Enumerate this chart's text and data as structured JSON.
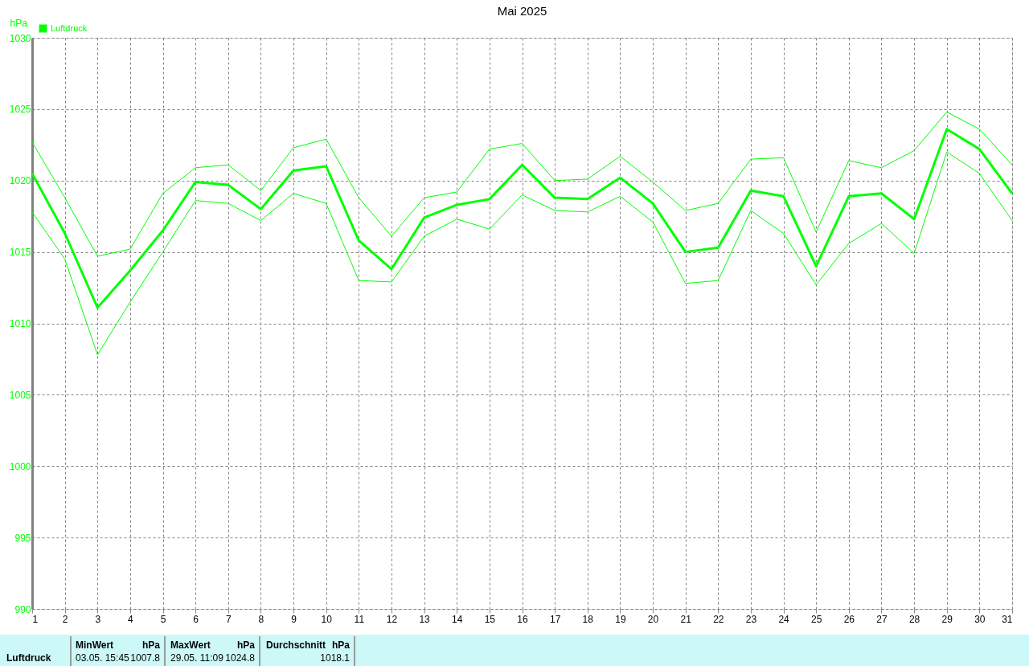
{
  "chart_data": {
    "type": "line",
    "title": "Mai 2025",
    "ylabel": "hPa",
    "x": [
      1,
      2,
      3,
      4,
      5,
      6,
      7,
      8,
      9,
      10,
      11,
      12,
      13,
      14,
      15,
      16,
      17,
      18,
      19,
      20,
      21,
      22,
      23,
      24,
      25,
      26,
      27,
      28,
      29,
      30,
      31
    ],
    "series": [
      {
        "name": "Luftdruck",
        "color": "#00ff00",
        "values": [
          1020.5,
          1016.3,
          1011.1,
          1013.7,
          1016.5,
          1019.9,
          1019.7,
          1018.0,
          1020.7,
          1021.0,
          1015.8,
          1013.8,
          1017.4,
          1018.3,
          1018.7,
          1021.1,
          1018.8,
          1018.7,
          1020.2,
          1018.4,
          1015.0,
          1015.3,
          1019.3,
          1018.9,
          1014.0,
          1018.9,
          1019.1,
          1017.3,
          1023.6,
          1022.2,
          1019.1
        ]
      },
      {
        "color": "#00ff00",
        "values": [
          1022.7,
          1018.8,
          1014.7,
          1015.2,
          1019.1,
          1020.9,
          1021.1,
          1019.3,
          1022.3,
          1022.9,
          1018.8,
          1016.1,
          1018.8,
          1019.2,
          1022.2,
          1022.6,
          1020.0,
          1020.1,
          1021.7,
          1019.9,
          1017.9,
          1018.4,
          1021.5,
          1021.6,
          1016.4,
          1021.4,
          1020.9,
          1022.1,
          1024.8,
          1023.6,
          1021.1
        ]
      },
      {
        "color": "#00ff00",
        "values": [
          1017.8,
          1014.5,
          1007.8,
          1011.5,
          1015.0,
          1018.6,
          1018.4,
          1017.2,
          1019.1,
          1018.4,
          1013.0,
          1012.9,
          1016.1,
          1017.3,
          1016.6,
          1019.0,
          1017.9,
          1017.8,
          1018.9,
          1017.1,
          1012.8,
          1013.0,
          1017.9,
          1016.3,
          1012.7,
          1015.6,
          1017.0,
          1014.9,
          1022.0,
          1020.5,
          1017.2
        ]
      }
    ],
    "xlim": [
      1,
      31
    ],
    "xticks": [
      1,
      2,
      3,
      4,
      5,
      6,
      7,
      8,
      9,
      10,
      11,
      12,
      13,
      14,
      15,
      16,
      17,
      18,
      19,
      20,
      21,
      22,
      23,
      24,
      25,
      26,
      27,
      28,
      29,
      30,
      31
    ],
    "ylim": [
      990,
      1030
    ],
    "yticks": [
      990,
      995,
      1000,
      1005,
      1010,
      1015,
      1020,
      1025,
      1030
    ],
    "grid": true,
    "legend": "top left",
    "marker": "none",
    "line_style": "solid",
    "annotations": [
      "Luftdruck",
      "MinWert",
      "hPa",
      "03.05. 15:45",
      "1007.8",
      "MaxWert",
      "hPa",
      "29.05. 11:09",
      "1024.8",
      "Durchschnitt",
      "hPa",
      "1018.1"
    ]
  }
}
